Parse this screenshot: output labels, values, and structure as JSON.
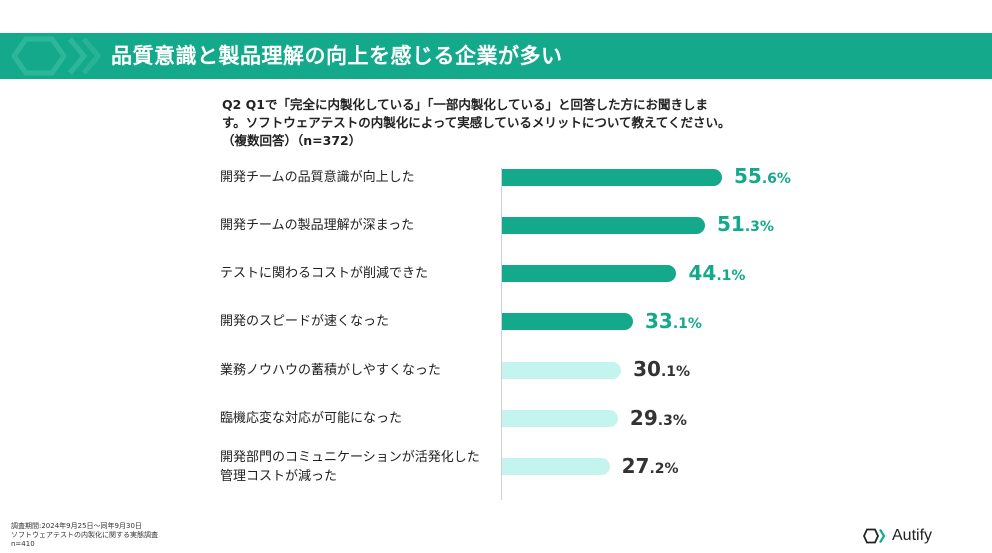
{
  "banner": {
    "title": "品質意識と製品理解の向上を感じる企業が多い"
  },
  "question": {
    "lines": [
      "Q2 Q1で「完全に内製化している」「一部内製化している」と回答した方にお聞きしま",
      "す。ソフトウェアテストの内製化によって実感しているメリットについて教えてください。",
      "（複数回答）（n=372）"
    ]
  },
  "colors": {
    "primary": "#15a98b",
    "secondary": "#c3f4ed",
    "value_primary": "#15a98b",
    "value_secondary": "#333333"
  },
  "chart_data": {
    "type": "bar",
    "orientation": "horizontal",
    "categories": [
      "開発チームの品質意識が向上した",
      "開発チームの製品理解が深まった",
      "テストに関わるコストが削減できた",
      "開発のスピードが速くなった",
      "業務ノウハウの蓄積がしやすくなった",
      "臨機応変な対応が可能になった",
      "開発部門のコミュニケーションが活発化した\n管理コストが減った"
    ],
    "values": [
      55.6,
      51.3,
      44.1,
      33.1,
      30.1,
      29.3,
      27.2
    ],
    "value_labels": [
      {
        "int": "55",
        "dec": ".6%"
      },
      {
        "int": "51",
        "dec": ".3%"
      },
      {
        "int": "44",
        "dec": ".1%"
      },
      {
        "int": "33",
        "dec": ".1%"
      },
      {
        "int": "30",
        "dec": ".1%"
      },
      {
        "int": "29",
        "dec": ".3%"
      },
      {
        "int": "27",
        "dec": ".2%"
      }
    ],
    "highlighted_count": 4,
    "xlim": [
      0,
      100
    ],
    "title": "",
    "xlabel": "",
    "ylabel": ""
  },
  "footnote": {
    "lines": [
      "調査期間:2024年9月25日〜同年9月30日",
      "ソフトウェアテストの内製化に関する実態調査",
      "n=410"
    ]
  },
  "logo": {
    "text": "Autify",
    "icon": "autify-logo-icon"
  }
}
